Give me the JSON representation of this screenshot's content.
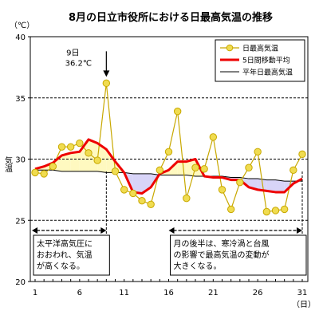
{
  "chart_data": {
    "type": "line",
    "title": "8月の日立市役所における日最高気温の推移",
    "ylabel_unit": "（℃）",
    "ylabel": "気温",
    "xlabel_unit": "（日）",
    "ylim": [
      20,
      40
    ],
    "yticks": [
      "20",
      "25",
      "30",
      "35",
      "40"
    ],
    "xlim": [
      1,
      31
    ],
    "xticks": [
      "1",
      "6",
      "11",
      "16",
      "21",
      "26",
      "31"
    ],
    "grid_y": [
      25,
      30,
      35
    ],
    "legend_position": "top-right",
    "x": [
      1,
      2,
      3,
      4,
      5,
      6,
      7,
      8,
      9,
      10,
      11,
      12,
      13,
      14,
      15,
      16,
      17,
      18,
      19,
      20,
      21,
      22,
      23,
      24,
      25,
      26,
      27,
      28,
      29,
      30,
      31
    ],
    "series": [
      {
        "name": "日最高気温",
        "color": "#f0dc50",
        "values": [
          28.9,
          28.8,
          29.4,
          31.0,
          31.0,
          31.3,
          30.5,
          29.9,
          36.2,
          29.0,
          27.5,
          27.2,
          26.6,
          26.3,
          29.1,
          30.6,
          33.9,
          26.8,
          29.3,
          29.2,
          31.8,
          27.5,
          25.9,
          28.1,
          29.3,
          30.6,
          25.7,
          25.8,
          25.9,
          29.1,
          30.4
        ]
      },
      {
        "name": "5日間移動平均",
        "color": "#ee0000",
        "values": [
          29.2,
          29.4,
          29.7,
          30.3,
          30.5,
          30.6,
          31.6,
          31.3,
          30.8,
          29.8,
          28.9,
          27.3,
          27.2,
          27.7,
          28.8,
          29.1,
          29.8,
          29.8,
          30.0,
          28.6,
          28.5,
          28.5,
          28.3,
          28.3,
          27.7,
          27.5,
          27.4,
          27.3,
          27.3,
          28.0,
          28.4
        ]
      },
      {
        "name": "平年日最高気温",
        "color": "#000000",
        "values": [
          29.1,
          29.1,
          29.1,
          29.0,
          29.0,
          29.0,
          29.0,
          29.0,
          28.9,
          28.9,
          28.9,
          28.8,
          28.8,
          28.8,
          28.7,
          28.7,
          28.7,
          28.7,
          28.6,
          28.6,
          28.6,
          28.6,
          28.5,
          28.5,
          28.4,
          28.4,
          28.3,
          28.3,
          28.2,
          28.2,
          28.2
        ]
      }
    ],
    "callout_day": 9,
    "callout_day_label": "9日",
    "callout_value_label": "36.2℃",
    "annotations": [
      {
        "id": "early",
        "lines": [
          "太平洋高気圧に",
          "おおわれ、気温",
          "が高くなる。"
        ],
        "day_from": 1,
        "day_to": 9
      },
      {
        "id": "late",
        "lines": [
          "月の後半は、寒冷渦と台風",
          "の影響で最高気温の変動が",
          "大きくなる。"
        ],
        "day_from": 16,
        "day_to": 31
      }
    ],
    "colors": {
      "above_normal_fill": "#fff9c0",
      "below_normal_fill": "#d8d4f8",
      "marker_stroke": "#c8a800",
      "grid": "#000000"
    }
  }
}
